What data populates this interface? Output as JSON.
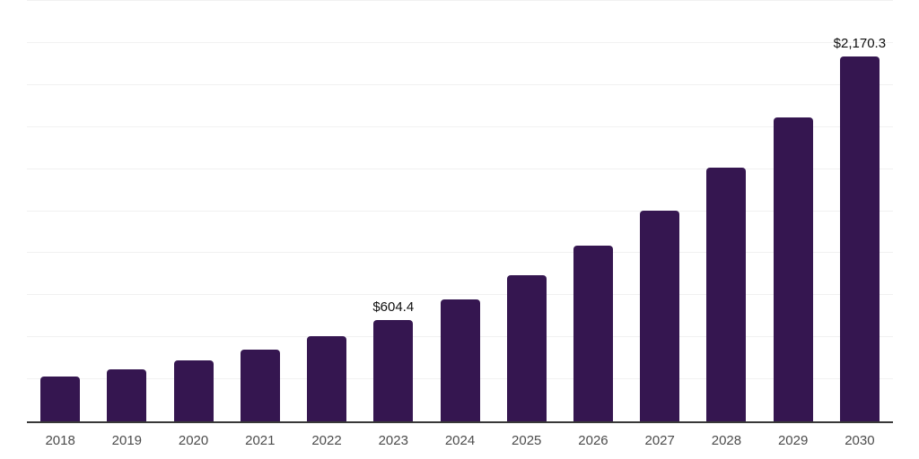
{
  "chart_data": {
    "type": "bar",
    "title": "",
    "xlabel": "",
    "ylabel": "",
    "categories": [
      "2018",
      "2019",
      "2020",
      "2021",
      "2022",
      "2023",
      "2024",
      "2025",
      "2026",
      "2027",
      "2028",
      "2029",
      "2030"
    ],
    "values": [
      266,
      309,
      362,
      425,
      505,
      604.4,
      726,
      871,
      1046,
      1255,
      1507,
      1809,
      2170.3
    ],
    "bar_labels": [
      "",
      "",
      "",
      "",
      "",
      "$604.4",
      "",
      "",
      "",
      "",
      "",
      "",
      "$2,170.3"
    ],
    "ylim": [
      0,
      2500
    ],
    "gridline_step": 250,
    "grid": true,
    "legend": false,
    "colors": {
      "bar": "#351650",
      "background": "#ffffff",
      "gridline": "#f1f1f1",
      "axis_line": "#383838",
      "tick_label": "#4c4c4c",
      "value_label": "#0e0e0e"
    }
  }
}
